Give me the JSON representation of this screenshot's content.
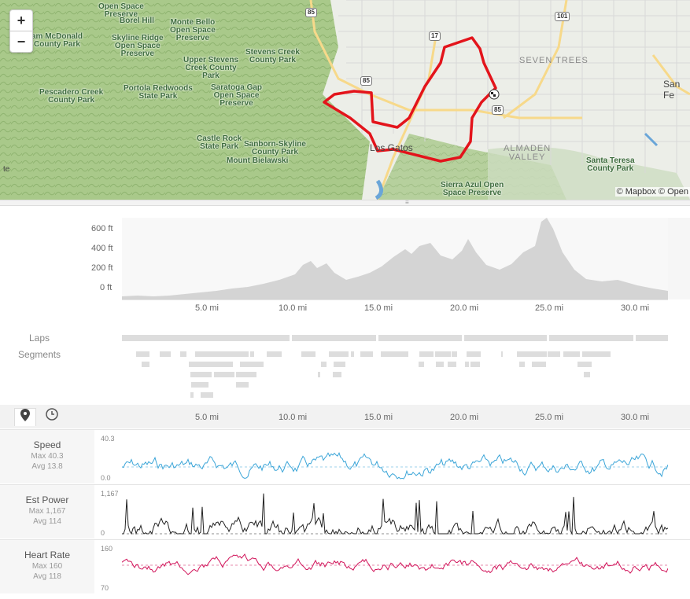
{
  "map": {
    "zoom_in": "+",
    "zoom_out": "−",
    "attribution": "© Mapbox © Open",
    "parks": [
      {
        "text": "Open Space\nPreserve",
        "key": "p1"
      },
      {
        "text": "Borel Hill",
        "key": "p2"
      },
      {
        "text": "am McDonald\nCounty Park",
        "key": "p3"
      },
      {
        "text": "Skyline Ridge\nOpen Space\nPreserve",
        "key": "p4"
      },
      {
        "text": "Monte Bello\nOpen Space\nPreserve",
        "key": "p5"
      },
      {
        "text": "Stevens Creek\nCounty Park",
        "key": "p6"
      },
      {
        "text": "Upper Stevens\nCreek County\nPark",
        "key": "p7"
      },
      {
        "text": "Pescadero Creek\nCounty Park",
        "key": "p8"
      },
      {
        "text": "Portola Redwoods\nState Park",
        "key": "p9"
      },
      {
        "text": "Saratoga Gap\nOpen Space\nPreserve",
        "key": "p10"
      },
      {
        "text": "Castle Rock\nState Park",
        "key": "p11"
      },
      {
        "text": "Sanborn-Skyline\nCounty Park",
        "key": "p12"
      },
      {
        "text": "Mount Bielawski",
        "key": "p13"
      },
      {
        "text": "Santa Teresa\nCounty Park",
        "key": "p14"
      },
      {
        "text": "Sierra Azul Open\nSpace Preserve",
        "key": "p15"
      }
    ],
    "cities": [
      {
        "text": "SEVEN TREES",
        "key": "c1"
      },
      {
        "text": "ALMADEN\nVALLEY",
        "key": "c2"
      }
    ],
    "towns": [
      {
        "text": "Los Gatos",
        "key": "t1"
      },
      {
        "text": "San Fe",
        "key": "t2"
      },
      {
        "text": "te",
        "key": "t3"
      }
    ],
    "highways": [
      "85",
      "17",
      "101",
      "85",
      "85"
    ]
  },
  "elevation": {
    "y_ticks": [
      "600 ft",
      "400 ft",
      "200 ft",
      "0 ft"
    ],
    "x_ticks": [
      "5.0 mi",
      "10.0 mi",
      "15.0 mi",
      "20.0 mi",
      "25.0 mi",
      "30.0 mi"
    ],
    "laps_label": "Laps",
    "segments_label": "Segments"
  },
  "tabs": {
    "map_icon": "map-pin-icon",
    "time_icon": "clock-icon"
  },
  "stream_x_ticks": [
    "5.0 mi",
    "10.0 mi",
    "15.0 mi",
    "20.0 mi",
    "25.0 mi",
    "30.0 mi"
  ],
  "streams": [
    {
      "name": "Speed",
      "max": "Max 40.3",
      "avg": "Avg 13.8",
      "ytop": "40.3",
      "ybot": "0.0",
      "color": "#3ba5d8"
    },
    {
      "name": "Est Power",
      "max": "Max 1,167",
      "avg": "Avg 114",
      "ytop": "1,167",
      "ybot": "0",
      "color": "#222222"
    },
    {
      "name": "Heart Rate",
      "max": "Max 160",
      "avg": "Avg 118",
      "ytop": "160",
      "ybot": "70",
      "color": "#d1145a"
    }
  ]
}
